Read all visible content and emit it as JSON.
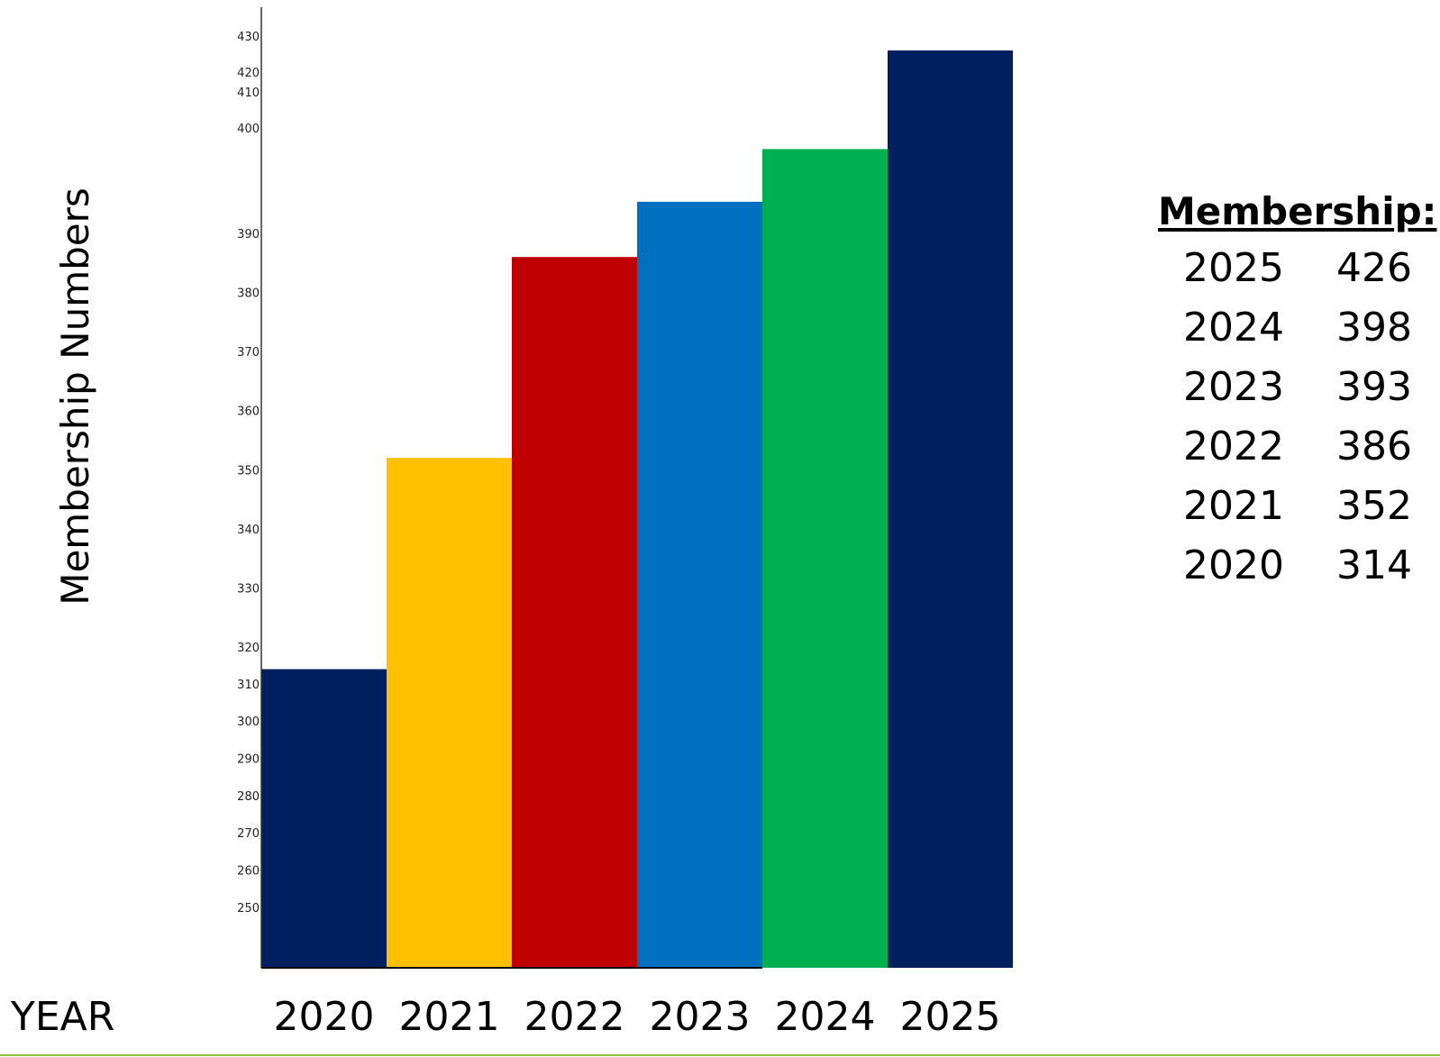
{
  "chart_data": {
    "type": "bar",
    "xlabel": "YEAR",
    "ylabel": "Membership Numbers",
    "categories": [
      "2020",
      "2021",
      "2022",
      "2023",
      "2024",
      "2025"
    ],
    "values": [
      314,
      352,
      386,
      393,
      398,
      426
    ],
    "colors": [
      "#001f5f",
      "#ffc000",
      "#c00000",
      "#0070c0",
      "#00b050",
      "#001f5f"
    ],
    "yticks": [
      250,
      260,
      270,
      280,
      290,
      300,
      310,
      320,
      330,
      340,
      350,
      360,
      370,
      380,
      390,
      400,
      410,
      420,
      430
    ],
    "ylim": [
      240,
      430
    ],
    "grid": false,
    "legend": "none"
  },
  "summary": {
    "title": "Membership:",
    "rows": [
      {
        "year": "2025",
        "value": "426"
      },
      {
        "year": "2024",
        "value": "398"
      },
      {
        "year": "2023",
        "value": "393"
      },
      {
        "year": "2022",
        "value": "386"
      },
      {
        "year": "2021",
        "value": "352"
      },
      {
        "year": "2020",
        "value": "314"
      }
    ]
  },
  "colors": {
    "bottom_rule": "#8dc63f"
  }
}
